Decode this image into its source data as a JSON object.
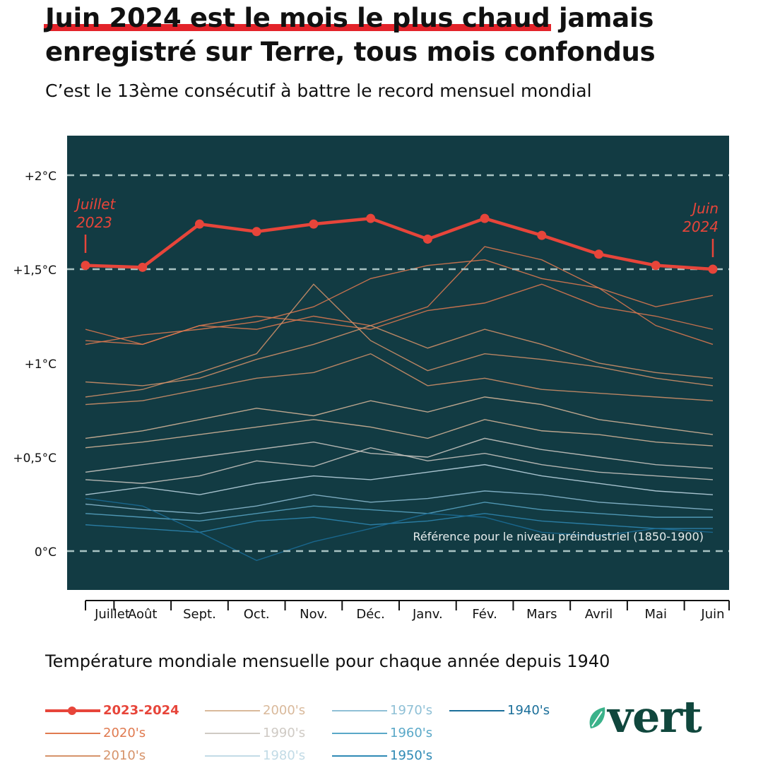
{
  "header": {
    "title_highlight": "Juin 2024 est le mois le plus chaud",
    "title_rest": " jamais enregistré sur Terre, tous mois confondus",
    "subtitle": "C’est le 13ème consécutif à battre le record mensuel mondial"
  },
  "caption": "Température mondiale mensuelle pour chaque année depuis 1940",
  "colors": {
    "background": "#123b43",
    "highlight": "#e7453a",
    "title_underline": "#e3232a",
    "logo": "#10473d",
    "logo_leaf": "#3bb28a"
  },
  "legend": [
    {
      "label": "2023-2024",
      "color": "#e7453a"
    },
    {
      "label": "2020's",
      "color": "#e07a50"
    },
    {
      "label": "2010's",
      "color": "#d6936a"
    },
    {
      "label": "2000's",
      "color": "#d9b99b"
    },
    {
      "label": "1990's",
      "color": "#cfcac4"
    },
    {
      "label": "1980's",
      "color": "#c2dbe6"
    },
    {
      "label": "1970's",
      "color": "#8fc0d6"
    },
    {
      "label": "1960's",
      "color": "#5aa8c8"
    },
    {
      "label": "1950's",
      "color": "#2f8ab5"
    },
    {
      "label": "1940's",
      "color": "#1b6f9a"
    }
  ],
  "logo": {
    "text": "vert",
    "icon": "leaf-icon"
  },
  "chart_data": {
    "type": "line",
    "categories": [
      "Juillet",
      "Août",
      "Sept.",
      "Oct.",
      "Nov.",
      "Déc.",
      "Janv.",
      "Fév.",
      "Mars",
      "Avril",
      "Mai",
      "Juin"
    ],
    "ytick_labels": [
      "0°C",
      "+0,5°C",
      "+1°C",
      "+1,5°C",
      "+2°C"
    ],
    "yticks": [
      0,
      0.5,
      1,
      1.5,
      2
    ],
    "ylim": [
      -0.2,
      2.2
    ],
    "reference_lines": [
      0,
      1.5,
      2
    ],
    "reference_label": "Référence pour le niveau préindustriel (1850-1900)",
    "annotations": [
      {
        "line1": "Juillet",
        "line2": "2023",
        "month": 0
      },
      {
        "line1": "Juin",
        "line2": "2024",
        "month": 11
      }
    ],
    "highlight_series": {
      "name": "2023-2024",
      "values": [
        1.52,
        1.51,
        1.74,
        1.7,
        1.74,
        1.77,
        1.66,
        1.77,
        1.68,
        1.58,
        1.52,
        1.5
      ]
    },
    "decade_series": [
      {
        "name": "2020's",
        "values": [
          1.12,
          1.1,
          1.2,
          1.25,
          1.22,
          1.18,
          1.28,
          1.32,
          1.42,
          1.3,
          1.25,
          1.18
        ]
      },
      {
        "name": "2020's",
        "values": [
          1.1,
          1.15,
          1.18,
          1.22,
          1.3,
          1.45,
          1.52,
          1.55,
          1.45,
          1.4,
          1.3,
          1.36
        ]
      },
      {
        "name": "2020's",
        "values": [
          1.18,
          1.1,
          1.2,
          1.18,
          1.25,
          1.2,
          1.3,
          1.62,
          1.55,
          1.4,
          1.2,
          1.1
        ]
      },
      {
        "name": "2010's",
        "values": [
          0.9,
          0.88,
          0.92,
          1.02,
          1.1,
          1.2,
          1.08,
          1.18,
          1.1,
          1.0,
          0.95,
          0.92
        ]
      },
      {
        "name": "2010's",
        "values": [
          0.82,
          0.86,
          0.95,
          1.05,
          1.42,
          1.12,
          0.96,
          1.05,
          1.02,
          0.98,
          0.92,
          0.88
        ]
      },
      {
        "name": "2010's",
        "values": [
          0.78,
          0.8,
          0.86,
          0.92,
          0.95,
          1.05,
          0.88,
          0.92,
          0.86,
          0.84,
          0.82,
          0.8
        ]
      },
      {
        "name": "2000's",
        "values": [
          0.6,
          0.64,
          0.7,
          0.76,
          0.72,
          0.8,
          0.74,
          0.82,
          0.78,
          0.7,
          0.66,
          0.62
        ]
      },
      {
        "name": "2000's",
        "values": [
          0.55,
          0.58,
          0.62,
          0.66,
          0.7,
          0.66,
          0.6,
          0.7,
          0.64,
          0.62,
          0.58,
          0.56
        ]
      },
      {
        "name": "1990's",
        "values": [
          0.42,
          0.46,
          0.5,
          0.54,
          0.58,
          0.52,
          0.5,
          0.6,
          0.54,
          0.5,
          0.46,
          0.44
        ]
      },
      {
        "name": "1990's",
        "values": [
          0.38,
          0.36,
          0.4,
          0.48,
          0.45,
          0.55,
          0.48,
          0.52,
          0.46,
          0.42,
          0.4,
          0.38
        ]
      },
      {
        "name": "1980's",
        "values": [
          0.3,
          0.34,
          0.3,
          0.36,
          0.4,
          0.38,
          0.42,
          0.46,
          0.4,
          0.36,
          0.32,
          0.3
        ]
      },
      {
        "name": "1970's",
        "values": [
          0.25,
          0.22,
          0.2,
          0.24,
          0.3,
          0.26,
          0.28,
          0.32,
          0.3,
          0.26,
          0.24,
          0.22
        ]
      },
      {
        "name": "1960's",
        "values": [
          0.2,
          0.18,
          0.16,
          0.2,
          0.24,
          0.22,
          0.2,
          0.26,
          0.22,
          0.2,
          0.18,
          0.18
        ]
      },
      {
        "name": "1950's",
        "values": [
          0.14,
          0.12,
          0.1,
          0.16,
          0.18,
          0.14,
          0.16,
          0.2,
          0.16,
          0.14,
          0.12,
          0.12
        ]
      },
      {
        "name": "1940's",
        "values": [
          0.28,
          0.24,
          0.1,
          -0.05,
          0.05,
          0.12,
          0.2,
          0.18,
          0.1,
          0.08,
          0.12,
          0.1
        ]
      }
    ]
  }
}
